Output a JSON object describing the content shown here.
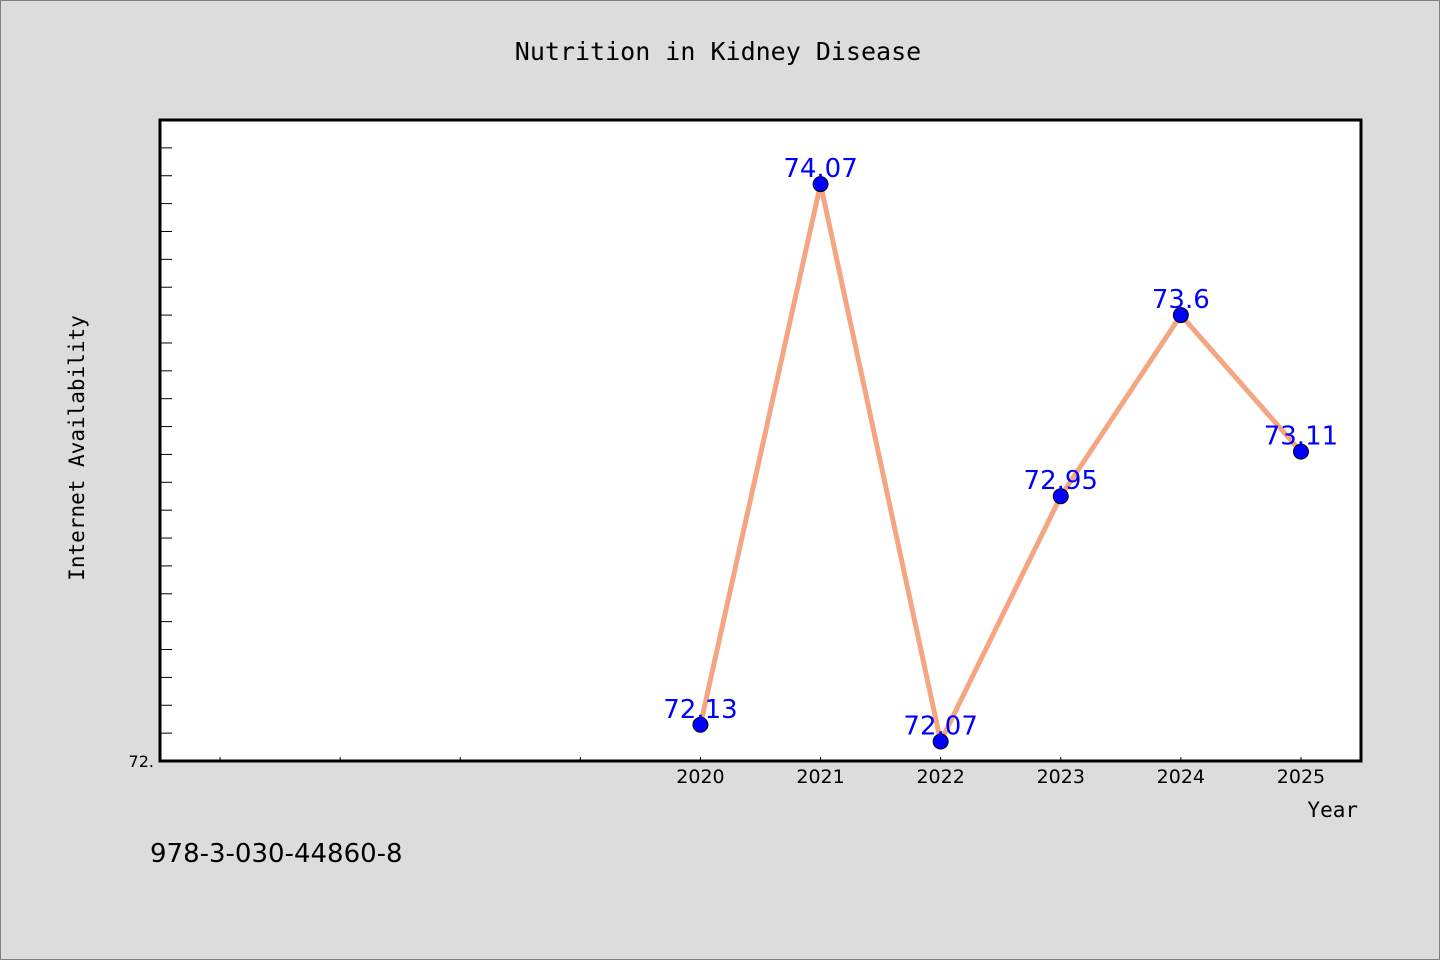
{
  "chart_data": {
    "type": "line",
    "title": "Nutrition in Kidney Disease",
    "xlabel": "Year",
    "ylabel": "Internet Availability",
    "x": [
      "2020",
      "2021",
      "2022",
      "2023",
      "2024",
      "2025"
    ],
    "series": [
      {
        "values": [
          72.13,
          74.07,
          72.07,
          72.95,
          73.6,
          73.11
        ],
        "labels": [
          "72.13",
          "74.07",
          "72.07",
          "72.95",
          "73.6",
          "73.11"
        ]
      }
    ],
    "y_tick_label": "72.",
    "ylim": [
      72.0,
      74.3
    ],
    "xlim": [
      2015.5,
      2025.5
    ],
    "grid": false,
    "legend": "none",
    "colors": {
      "line": "#f4a582",
      "marker": "#0000ff",
      "label": "#0000ff",
      "background": "#dcdcdc",
      "plot_bg": "#ffffff"
    }
  },
  "footer": {
    "isbn": "978-3-030-44860-8"
  }
}
